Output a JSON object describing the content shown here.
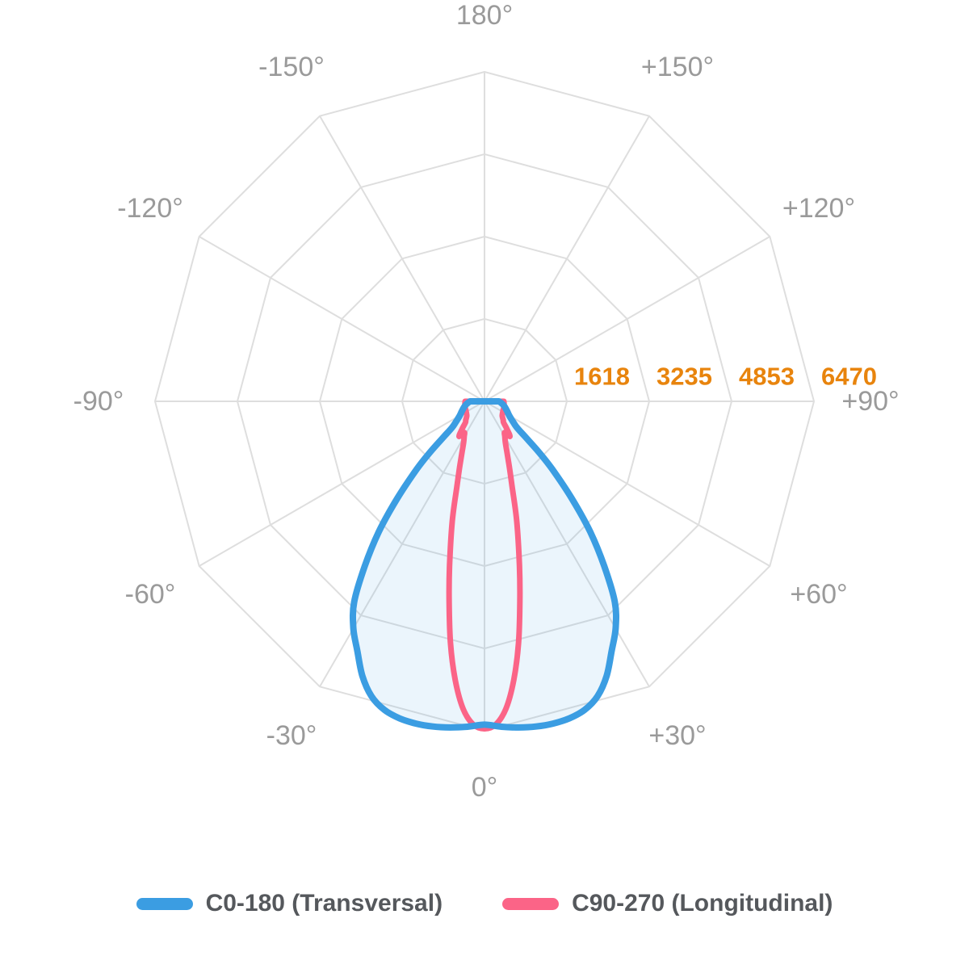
{
  "chart_data": {
    "type": "line",
    "coordinate_system": "polar",
    "subtype": "photometric-intensity-distribution",
    "zero_angle_position": "bottom",
    "positive_angles": "right",
    "grid": {
      "shape": "polygon-12-sides",
      "spoke_step_deg": 30,
      "color": "#DEDEDE"
    },
    "radial_axis": {
      "min": 0,
      "max": 6470,
      "ticks": [
        1618,
        3235,
        4853,
        6470
      ],
      "tick_color": "#E8840D"
    },
    "angle_axis": {
      "label_color": "#9A9A9A",
      "labels": [
        {
          "deg": 180,
          "label": "180°"
        },
        {
          "deg": -150,
          "label": "-150°"
        },
        {
          "deg": 150,
          "label": "+150°"
        },
        {
          "deg": -120,
          "label": "-120°"
        },
        {
          "deg": 120,
          "label": "+120°"
        },
        {
          "deg": -90,
          "label": "-90°"
        },
        {
          "deg": 90,
          "label": "+90°"
        },
        {
          "deg": -60,
          "label": "-60°"
        },
        {
          "deg": 60,
          "label": "+60°"
        },
        {
          "deg": -30,
          "label": "-30°"
        },
        {
          "deg": 30,
          "label": "+30°"
        },
        {
          "deg": 0,
          "label": "0°"
        }
      ]
    },
    "series": [
      {
        "name": "C0-180 (Transversal)",
        "color": "#3B9DE2",
        "fill": "rgba(59,157,226,0.10)",
        "line_width": 8,
        "closed": true,
        "points": [
          [
            -90,
            285
          ],
          [
            -85,
            325
          ],
          [
            -80,
            370
          ],
          [
            -75,
            410
          ],
          [
            -70,
            450
          ],
          [
            -65,
            500
          ],
          [
            -60,
            560
          ],
          [
            -57,
            620
          ],
          [
            -54,
            700
          ],
          [
            -51,
            820
          ],
          [
            -49,
            1050
          ],
          [
            -47,
            1450
          ],
          [
            -45,
            1880
          ],
          [
            -42,
            2550
          ],
          [
            -39,
            3300
          ],
          [
            -36,
            4000
          ],
          [
            -33,
            4700
          ],
          [
            -30,
            5150
          ],
          [
            -27,
            5500
          ],
          [
            -24,
            5900
          ],
          [
            -21,
            6200
          ],
          [
            -18,
            6370
          ],
          [
            -15,
            6445
          ],
          [
            -12,
            6470
          ],
          [
            -9,
            6465
          ],
          [
            -6,
            6440
          ],
          [
            -3,
            6400
          ],
          [
            0,
            6350
          ],
          [
            3,
            6400
          ],
          [
            6,
            6440
          ],
          [
            9,
            6465
          ],
          [
            12,
            6470
          ],
          [
            15,
            6445
          ],
          [
            18,
            6370
          ],
          [
            21,
            6200
          ],
          [
            24,
            5900
          ],
          [
            27,
            5500
          ],
          [
            30,
            5150
          ],
          [
            33,
            4700
          ],
          [
            36,
            4000
          ],
          [
            39,
            3300
          ],
          [
            42,
            2550
          ],
          [
            45,
            1880
          ],
          [
            47,
            1450
          ],
          [
            49,
            1050
          ],
          [
            51,
            820
          ],
          [
            54,
            700
          ],
          [
            57,
            620
          ],
          [
            60,
            560
          ],
          [
            65,
            500
          ],
          [
            70,
            450
          ],
          [
            75,
            410
          ],
          [
            80,
            370
          ],
          [
            85,
            325
          ],
          [
            90,
            285
          ]
        ]
      },
      {
        "name": "C90-270 (Longitudinal)",
        "color": "#FB6487",
        "fill": "none",
        "line_width": 7,
        "closed": true,
        "points": [
          [
            -90,
            380
          ],
          [
            -85,
            385
          ],
          [
            -80,
            390
          ],
          [
            -75,
            395
          ],
          [
            -70,
            400
          ],
          [
            -65,
            405
          ],
          [
            -60,
            415
          ],
          [
            -55,
            430
          ],
          [
            -50,
            455
          ],
          [
            -45,
            520
          ],
          [
            -42,
            560
          ],
          [
            -39,
            700
          ],
          [
            -36,
            850
          ],
          [
            -33,
            730
          ],
          [
            -30,
            800
          ],
          [
            -27,
            900
          ],
          [
            -24,
            1080
          ],
          [
            -21,
            1350
          ],
          [
            -18,
            1750
          ],
          [
            -15,
            2450
          ],
          [
            -12,
            3300
          ],
          [
            -10,
            4000
          ],
          [
            -8,
            4800
          ],
          [
            -6,
            5500
          ],
          [
            -4,
            6050
          ],
          [
            -2,
            6350
          ],
          [
            0,
            6430
          ],
          [
            2,
            6350
          ],
          [
            4,
            6050
          ],
          [
            6,
            5500
          ],
          [
            8,
            4800
          ],
          [
            10,
            4000
          ],
          [
            12,
            3300
          ],
          [
            15,
            2450
          ],
          [
            18,
            1750
          ],
          [
            21,
            1350
          ],
          [
            24,
            1080
          ],
          [
            27,
            900
          ],
          [
            30,
            800
          ],
          [
            33,
            730
          ],
          [
            36,
            850
          ],
          [
            39,
            700
          ],
          [
            42,
            560
          ],
          [
            45,
            520
          ],
          [
            50,
            455
          ],
          [
            55,
            430
          ],
          [
            60,
            415
          ],
          [
            65,
            405
          ],
          [
            70,
            400
          ],
          [
            75,
            395
          ],
          [
            80,
            390
          ],
          [
            85,
            385
          ],
          [
            90,
            380
          ]
        ]
      }
    ],
    "legend": {
      "position": "bottom",
      "text_color": "#55585C",
      "items": [
        "C0-180 (Transversal)",
        "C90-270 (Longitudinal)"
      ]
    }
  }
}
